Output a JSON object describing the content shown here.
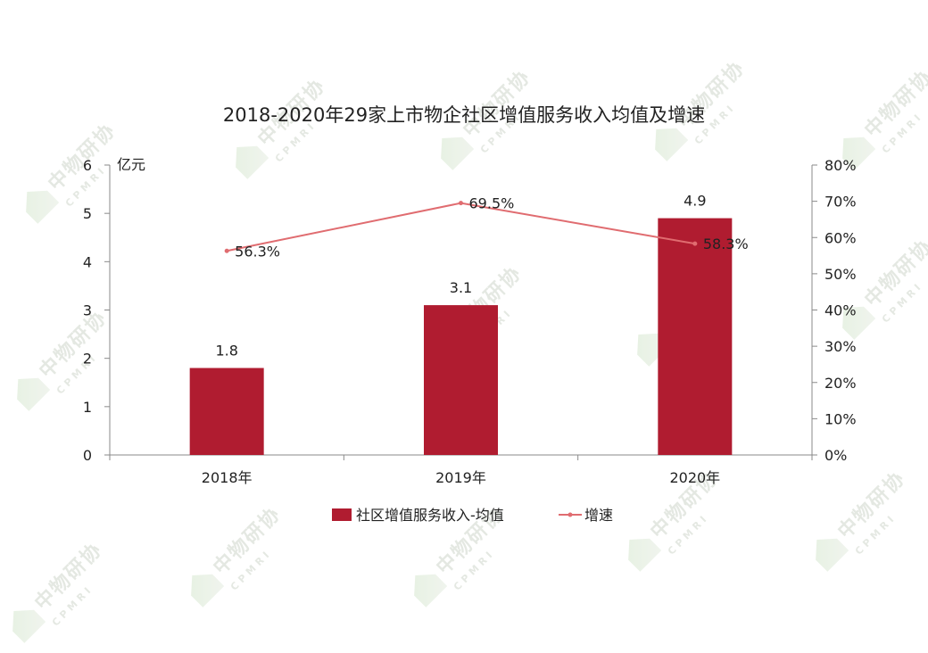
{
  "chart_data": {
    "type": "bar",
    "title": "2018-2020年29家上市物企社区增值服务收入均值及增速",
    "categories": [
      "2018年",
      "2019年",
      "2020年"
    ],
    "y_left_unit": "亿元",
    "y_left_ticks": [
      "0",
      "1",
      "2",
      "3",
      "4",
      "5",
      "6"
    ],
    "y_left_range": [
      0,
      6
    ],
    "y_right_ticks": [
      "0%",
      "10%",
      "20%",
      "30%",
      "40%",
      "50%",
      "60%",
      "70%",
      "80%"
    ],
    "y_right_range": [
      0,
      80
    ],
    "series": [
      {
        "name": "社区增值服务收入-均值",
        "kind": "bar",
        "axis": "left",
        "color": "#b01c30",
        "values": [
          1.8,
          3.1,
          4.9
        ],
        "labels": [
          "1.8",
          "3.1",
          "4.9"
        ]
      },
      {
        "name": "增速",
        "kind": "line",
        "axis": "right",
        "color": "#e06c70",
        "values": [
          56.3,
          69.5,
          58.3
        ],
        "labels": [
          "56.3%",
          "69.5%",
          "58.3%"
        ]
      }
    ],
    "legend_position": "bottom",
    "grid": false
  },
  "watermark": {
    "brand": "中物研协",
    "sub": "CPMRI"
  }
}
